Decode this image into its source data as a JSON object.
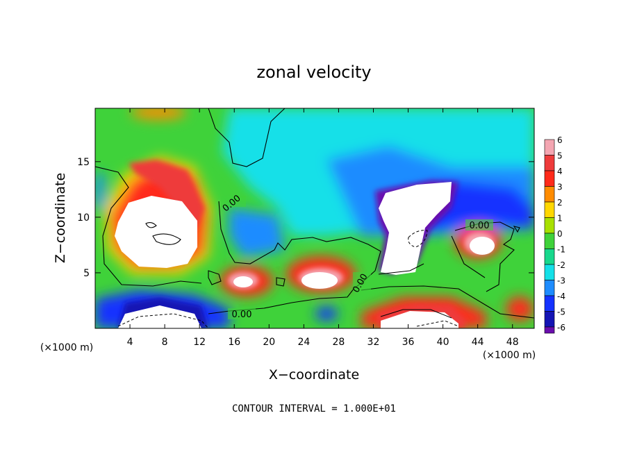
{
  "chart_data": {
    "type": "heatmap",
    "title": "zonal velocity",
    "xlabel": "X−coordinate",
    "ylabel": "Z−coordinate",
    "x_unit_left": "(×1000 m)",
    "x_unit_right": "(×1000 m)",
    "footer": "CONTOUR INTERVAL = 1.000E+01",
    "xlim": [
      0,
      50.5
    ],
    "ylim": [
      0,
      19.8
    ],
    "x_ticks": [
      4,
      8,
      12,
      16,
      20,
      24,
      28,
      32,
      36,
      40,
      44,
      48
    ],
    "y_ticks": [
      5,
      10,
      15
    ],
    "colorbar": {
      "levels": [
        6,
        5,
        4,
        3,
        2,
        1,
        0,
        -1,
        -2,
        -3,
        -4,
        -5,
        -6
      ],
      "colors": [
        "#f4a6b2",
        "#ee3b3b",
        "#ff2a1a",
        "#ff8c00",
        "#ffd700",
        "#a8e000",
        "#3fd23a",
        "#18d88c",
        "#14e0e8",
        "#1e8cff",
        "#1432ff",
        "#1414b4",
        "#6a0dad"
      ]
    },
    "contour_labels": [
      "0.00",
      "0.00",
      "0.00",
      "0.00"
    ],
    "field_features": [
      {
        "x": 7.5,
        "z": 9.0,
        "value": 7
      },
      {
        "x": 9.5,
        "z": 12.5,
        "value": 5
      },
      {
        "x": 18.0,
        "z": 4.0,
        "value": 5
      },
      {
        "x": 26.5,
        "z": 4.5,
        "value": 6
      },
      {
        "x": 44.5,
        "z": 7.5,
        "value": 6
      },
      {
        "x": 36.5,
        "z": 1.8,
        "value": 5
      },
      {
        "x": 8.0,
        "z": 2.0,
        "value": -5
      },
      {
        "x": 36.5,
        "z": 10.0,
        "value": -7
      },
      {
        "x": 44.0,
        "z": 12.0,
        "value": -4
      },
      {
        "x": 30.0,
        "z": 14.0,
        "value": -2
      }
    ]
  }
}
